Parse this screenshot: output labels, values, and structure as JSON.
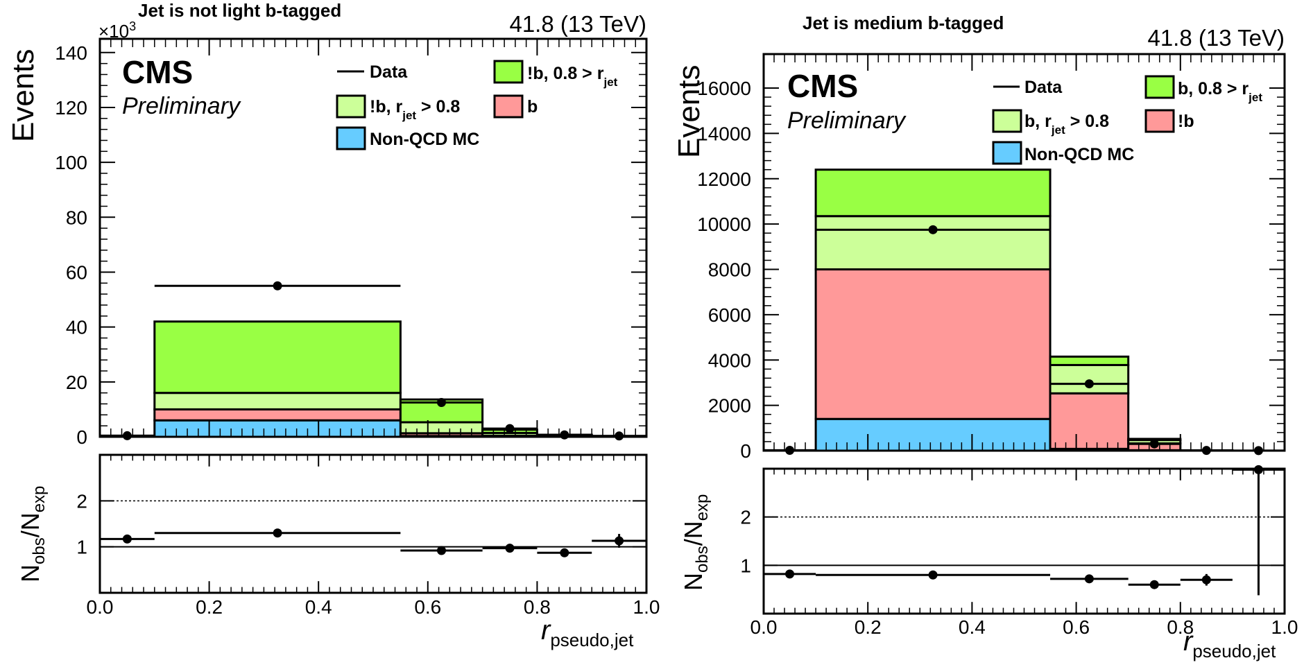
{
  "chart_data": [
    {
      "type": "bar",
      "stacked": true,
      "title": "Jet is not light b-tagged",
      "lumi_label": "41.8 (13 TeV)",
      "experiment": "CMS",
      "status": "Preliminary",
      "ylabel": "Events",
      "y_exponent": "×10",
      "y_exponent_power": "3",
      "xlabel": "r",
      "xlabel_sub": "pseudo,jet",
      "ratio_ylabel": "N",
      "ratio_ylabel_num_sub": "obs",
      "ratio_ylabel_slash": "/N",
      "ratio_ylabel_den_sub": "exp",
      "bin_edges": [
        0.0,
        0.1,
        0.55,
        0.7,
        0.8,
        0.9,
        1.0
      ],
      "xlim": [
        0.0,
        1.0
      ],
      "ylim": [
        0,
        145
      ],
      "yticks": [
        0,
        20,
        40,
        60,
        80,
        100,
        120,
        140
      ],
      "ytick_labels": [
        "0",
        "20",
        "40",
        "60",
        "80",
        "100",
        "120",
        "140"
      ],
      "xticks": [
        0.0,
        0.2,
        0.4,
        0.6,
        0.8,
        1.0
      ],
      "xtick_labels": [
        "0.0",
        "0.2",
        "0.4",
        "0.6",
        "0.8",
        "1.0"
      ],
      "legend": {
        "data": "Data",
        "entries": [
          {
            "key": "s_hi",
            "label": "!b, 0.8 > r",
            "sub": "jet",
            "suffix": ""
          },
          {
            "key": "s_lo",
            "label": "!b, r",
            "sub": "jet",
            "suffix": " > 0.8"
          },
          {
            "key": "b",
            "label": "b",
            "sub": "",
            "suffix": ""
          },
          {
            "key": "nonqcd",
            "label": "Non-QCD MC",
            "sub": "",
            "suffix": ""
          }
        ]
      },
      "stack_order": [
        "nonqcd",
        "b",
        "s_lo",
        "s_hi"
      ],
      "series": [
        {
          "key": "nonqcd",
          "color": "#66ccff",
          "values": [
            0.3,
            6.0,
            0.3,
            0.1,
            0.05,
            0.0
          ]
        },
        {
          "key": "b",
          "color": "#ff9999",
          "values": [
            0.1,
            4.0,
            1.0,
            0.3,
            0.1,
            0.05
          ]
        },
        {
          "key": "s_lo",
          "color": "#ccff99",
          "values": [
            0.0,
            6.0,
            4.0,
            1.0,
            0.3,
            0.1
          ]
        },
        {
          "key": "s_hi",
          "color": "#99ff44",
          "values": [
            0.0,
            26.0,
            8.3,
            1.2,
            0.3,
            0.15
          ]
        }
      ],
      "data_points": [
        0.4,
        55.0,
        12.5,
        3.0,
        0.7,
        0.3
      ],
      "ratio": {
        "ylim": [
          0.0,
          3.0
        ],
        "yticks": [
          1,
          2
        ],
        "ytick_labels": [
          "1",
          "2"
        ],
        "values": [
          1.17,
          1.3,
          0.92,
          0.97,
          0.87,
          1.13
        ],
        "errors": [
          0.03,
          0.01,
          0.02,
          0.04,
          0.05,
          0.15
        ]
      }
    },
    {
      "type": "bar",
      "stacked": true,
      "title": "Jet is medium b-tagged",
      "lumi_label": "41.8 (13 TeV)",
      "experiment": "CMS",
      "status": "Preliminary",
      "ylabel": "Events",
      "y_exponent": "",
      "y_exponent_power": "",
      "xlabel": "r",
      "xlabel_sub": "pseudo,jet",
      "ratio_ylabel": "N",
      "ratio_ylabel_num_sub": "obs",
      "ratio_ylabel_slash": "/N",
      "ratio_ylabel_den_sub": "exp",
      "bin_edges": [
        0.0,
        0.1,
        0.55,
        0.7,
        0.8,
        0.9,
        1.0
      ],
      "xlim": [
        0.0,
        1.0
      ],
      "ylim": [
        0,
        17500
      ],
      "yticks": [
        0,
        2000,
        4000,
        6000,
        8000,
        10000,
        12000,
        14000,
        16000
      ],
      "ytick_labels": [
        "0",
        "2000",
        "4000",
        "6000",
        "8000",
        "10000",
        "12000",
        "14000",
        "16000"
      ],
      "xticks": [
        0.0,
        0.2,
        0.4,
        0.6,
        0.8,
        1.0
      ],
      "xtick_labels": [
        "0.0",
        "0.2",
        "0.4",
        "0.6",
        "0.8",
        "1.0"
      ],
      "legend": {
        "data": "Data",
        "entries": [
          {
            "key": "s_hi",
            "label": "b, 0.8 > r",
            "sub": "jet",
            "suffix": ""
          },
          {
            "key": "s_lo",
            "label": "b, r",
            "sub": "jet",
            "suffix": " > 0.8"
          },
          {
            "key": "b",
            "label": "!b",
            "sub": "",
            "suffix": ""
          },
          {
            "key": "nonqcd",
            "label": "Non-QCD MC",
            "sub": "",
            "suffix": ""
          }
        ]
      },
      "stack_order": [
        "nonqcd",
        "b",
        "s_lo",
        "s_hi"
      ],
      "series": [
        {
          "key": "nonqcd",
          "color": "#66ccff",
          "values": [
            5,
            1400,
            80,
            20,
            3,
            0
          ]
        },
        {
          "key": "b",
          "color": "#ff9999",
          "values": [
            10,
            6600,
            2450,
            300,
            5,
            1
          ]
        },
        {
          "key": "s_lo",
          "color": "#ccff99",
          "values": [
            2,
            2350,
            1250,
            150,
            2,
            0
          ]
        },
        {
          "key": "s_hi",
          "color": "#99ff44",
          "values": [
            1,
            2050,
            370,
            50,
            1,
            0
          ]
        }
      ],
      "data_points": [
        15,
        9750,
        2950,
        300,
        10,
        3
      ],
      "ratio": {
        "ylim": [
          0.0,
          3.0
        ],
        "yticks": [
          1,
          2
        ],
        "ytick_labels": [
          "1",
          "2"
        ],
        "values": [
          0.82,
          0.8,
          0.72,
          0.6,
          0.7,
          2.98
        ],
        "errors": [
          0.08,
          0.01,
          0.02,
          0.04,
          0.12,
          2.6
        ]
      }
    }
  ]
}
